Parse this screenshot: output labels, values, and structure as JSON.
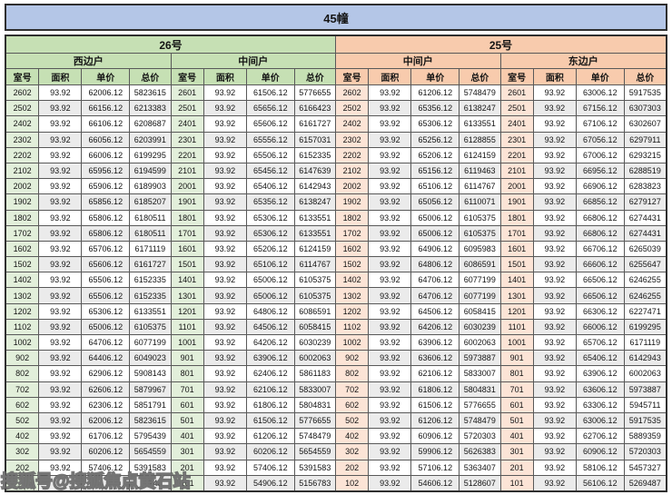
{
  "title": "45幢",
  "watermark": "搜狐号@搜狐焦点黄石站",
  "colors": {
    "title_bg": "#b4c6e7",
    "section_26_header": "#c6e0b4",
    "section_25_header": "#f8cbad",
    "room_cell_26": "#e2efda",
    "room_cell_25": "#fce4d6",
    "stripe": "#ebebeb",
    "border": "#595959"
  },
  "sections": [
    {
      "label": "26号",
      "header_color": "#c6e0b4",
      "room_cell_color": "#e2efda",
      "groups": [
        {
          "label": "西边户",
          "columns": [
            "室号",
            "面积",
            "单价",
            "总价"
          ],
          "rows": [
            [
              "2602",
              "93.92",
              "62006.12",
              "5823615"
            ],
            [
              "2502",
              "93.92",
              "66156.12",
              "6213383"
            ],
            [
              "2402",
              "93.92",
              "66106.12",
              "6208687"
            ],
            [
              "2302",
              "93.92",
              "66056.12",
              "6203991"
            ],
            [
              "2202",
              "93.92",
              "66006.12",
              "6199295"
            ],
            [
              "2102",
              "93.92",
              "65956.12",
              "6194599"
            ],
            [
              "2002",
              "93.92",
              "65906.12",
              "6189903"
            ],
            [
              "1902",
              "93.92",
              "65856.12",
              "6185207"
            ],
            [
              "1802",
              "93.92",
              "65806.12",
              "6180511"
            ],
            [
              "1702",
              "93.92",
              "65806.12",
              "6180511"
            ],
            [
              "1602",
              "93.92",
              "65706.12",
              "6171119"
            ],
            [
              "1502",
              "93.92",
              "65606.12",
              "6161727"
            ],
            [
              "1402",
              "93.92",
              "65506.12",
              "6152335"
            ],
            [
              "1302",
              "93.92",
              "65506.12",
              "6152335"
            ],
            [
              "1202",
              "93.92",
              "65306.12",
              "6133551"
            ],
            [
              "1102",
              "93.92",
              "65006.12",
              "6105375"
            ],
            [
              "1002",
              "93.92",
              "64706.12",
              "6077199"
            ],
            [
              "902",
              "93.92",
              "64406.12",
              "6049023"
            ],
            [
              "802",
              "93.92",
              "62906.12",
              "5908143"
            ],
            [
              "702",
              "93.92",
              "62606.12",
              "5879967"
            ],
            [
              "602",
              "93.92",
              "62306.12",
              "5851791"
            ],
            [
              "502",
              "93.92",
              "62006.12",
              "5823615"
            ],
            [
              "402",
              "93.92",
              "61706.12",
              "5795439"
            ],
            [
              "302",
              "93.92",
              "60206.12",
              "5654559"
            ],
            [
              "202",
              "93.92",
              "57406.12",
              "5391583"
            ],
            [
              "",
              "",
              "",
              "743"
            ]
          ]
        },
        {
          "label": "中间户",
          "columns": [
            "室号",
            "面积",
            "单价",
            "总价"
          ],
          "rows": [
            [
              "2601",
              "93.92",
              "61506.12",
              "5776655"
            ],
            [
              "2501",
              "93.92",
              "65656.12",
              "6166423"
            ],
            [
              "2401",
              "93.92",
              "65606.12",
              "6161727"
            ],
            [
              "2301",
              "93.92",
              "65556.12",
              "6157031"
            ],
            [
              "2201",
              "93.92",
              "65506.12",
              "6152335"
            ],
            [
              "2101",
              "93.92",
              "65456.12",
              "6147639"
            ],
            [
              "2001",
              "93.92",
              "65406.12",
              "6142943"
            ],
            [
              "1901",
              "93.92",
              "65356.12",
              "6138247"
            ],
            [
              "1801",
              "93.92",
              "65306.12",
              "6133551"
            ],
            [
              "1701",
              "93.92",
              "65306.12",
              "6133551"
            ],
            [
              "1601",
              "93.92",
              "65206.12",
              "6124159"
            ],
            [
              "1501",
              "93.92",
              "65106.12",
              "6114767"
            ],
            [
              "1401",
              "93.92",
              "65006.12",
              "6105375"
            ],
            [
              "1301",
              "93.92",
              "65006.12",
              "6105375"
            ],
            [
              "1201",
              "93.92",
              "64806.12",
              "6086591"
            ],
            [
              "1101",
              "93.92",
              "64506.12",
              "6058415"
            ],
            [
              "1001",
              "93.92",
              "64206.12",
              "6030239"
            ],
            [
              "901",
              "93.92",
              "63906.12",
              "6002063"
            ],
            [
              "801",
              "93.92",
              "62406.12",
              "5861183"
            ],
            [
              "701",
              "93.92",
              "62106.12",
              "5833007"
            ],
            [
              "601",
              "93.92",
              "61806.12",
              "5804831"
            ],
            [
              "501",
              "93.92",
              "61506.12",
              "5776655"
            ],
            [
              "401",
              "93.92",
              "61206.12",
              "5748479"
            ],
            [
              "301",
              "93.92",
              "60206.12",
              "5654559"
            ],
            [
              "201",
              "93.92",
              "57406.12",
              "5391583"
            ],
            [
              "101",
              "93.92",
              "54906.12",
              "5156783"
            ]
          ]
        }
      ]
    },
    {
      "label": "25号",
      "header_color": "#f8cbad",
      "room_cell_color": "#fce4d6",
      "groups": [
        {
          "label": "中间户",
          "columns": [
            "室号",
            "面积",
            "单价",
            "总价"
          ],
          "rows": [
            [
              "2602",
              "93.92",
              "61206.12",
              "5748479"
            ],
            [
              "2502",
              "93.92",
              "65356.12",
              "6138247"
            ],
            [
              "2402",
              "93.92",
              "65306.12",
              "6133551"
            ],
            [
              "2302",
              "93.92",
              "65256.12",
              "6128855"
            ],
            [
              "2202",
              "93.92",
              "65206.12",
              "6124159"
            ],
            [
              "2102",
              "93.92",
              "65156.12",
              "6119463"
            ],
            [
              "2002",
              "93.92",
              "65106.12",
              "6114767"
            ],
            [
              "1902",
              "93.92",
              "65056.12",
              "6110071"
            ],
            [
              "1802",
              "93.92",
              "65006.12",
              "6105375"
            ],
            [
              "1702",
              "93.92",
              "65006.12",
              "6105375"
            ],
            [
              "1602",
              "93.92",
              "64906.12",
              "6095983"
            ],
            [
              "1502",
              "93.92",
              "64806.12",
              "6086591"
            ],
            [
              "1402",
              "93.92",
              "64706.12",
              "6077199"
            ],
            [
              "1302",
              "93.92",
              "64706.12",
              "6077199"
            ],
            [
              "1202",
              "93.92",
              "64506.12",
              "6058415"
            ],
            [
              "1102",
              "93.92",
              "64206.12",
              "6030239"
            ],
            [
              "1002",
              "93.92",
              "63906.12",
              "6002063"
            ],
            [
              "902",
              "93.92",
              "63606.12",
              "5973887"
            ],
            [
              "802",
              "93.92",
              "62106.12",
              "5833007"
            ],
            [
              "702",
              "93.92",
              "61806.12",
              "5804831"
            ],
            [
              "602",
              "93.92",
              "61506.12",
              "5776655"
            ],
            [
              "502",
              "93.92",
              "61206.12",
              "5748479"
            ],
            [
              "402",
              "93.92",
              "60906.12",
              "5720303"
            ],
            [
              "302",
              "93.92",
              "59906.12",
              "5626383"
            ],
            [
              "202",
              "93.92",
              "57106.12",
              "5363407"
            ],
            [
              "102",
              "93.92",
              "54606.12",
              "5128607"
            ]
          ]
        },
        {
          "label": "东边户",
          "columns": [
            "室号",
            "面积",
            "单价",
            "总价"
          ],
          "rows": [
            [
              "2601",
              "93.92",
              "63006.12",
              "5917535"
            ],
            [
              "2501",
              "93.92",
              "67156.12",
              "6307303"
            ],
            [
              "2401",
              "93.92",
              "67106.12",
              "6302607"
            ],
            [
              "2301",
              "93.92",
              "67056.12",
              "6297911"
            ],
            [
              "2201",
              "93.92",
              "67006.12",
              "6293215"
            ],
            [
              "2101",
              "93.92",
              "66956.12",
              "6288519"
            ],
            [
              "2001",
              "93.92",
              "66906.12",
              "6283823"
            ],
            [
              "1901",
              "93.92",
              "66856.12",
              "6279127"
            ],
            [
              "1801",
              "93.92",
              "66806.12",
              "6274431"
            ],
            [
              "1701",
              "93.92",
              "66806.12",
              "6274431"
            ],
            [
              "1601",
              "93.92",
              "66706.12",
              "6265039"
            ],
            [
              "1501",
              "93.92",
              "66606.12",
              "6255647"
            ],
            [
              "1401",
              "93.92",
              "66506.12",
              "6246255"
            ],
            [
              "1301",
              "93.92",
              "66506.12",
              "6246255"
            ],
            [
              "1201",
              "93.92",
              "66306.12",
              "6227471"
            ],
            [
              "1101",
              "93.92",
              "66006.12",
              "6199295"
            ],
            [
              "1001",
              "93.92",
              "65706.12",
              "6171119"
            ],
            [
              "901",
              "93.92",
              "65406.12",
              "6142943"
            ],
            [
              "801",
              "93.92",
              "63906.12",
              "6002063"
            ],
            [
              "701",
              "93.92",
              "63606.12",
              "5973887"
            ],
            [
              "601",
              "93.92",
              "63306.12",
              "5945711"
            ],
            [
              "501",
              "93.92",
              "63006.12",
              "5917535"
            ],
            [
              "401",
              "93.92",
              "62706.12",
              "5889359"
            ],
            [
              "301",
              "93.92",
              "60906.12",
              "5720303"
            ],
            [
              "201",
              "93.92",
              "58106.12",
              "5457327"
            ],
            [
              "101",
              "93.92",
              "56106.12",
              "5269487"
            ]
          ]
        }
      ]
    }
  ]
}
